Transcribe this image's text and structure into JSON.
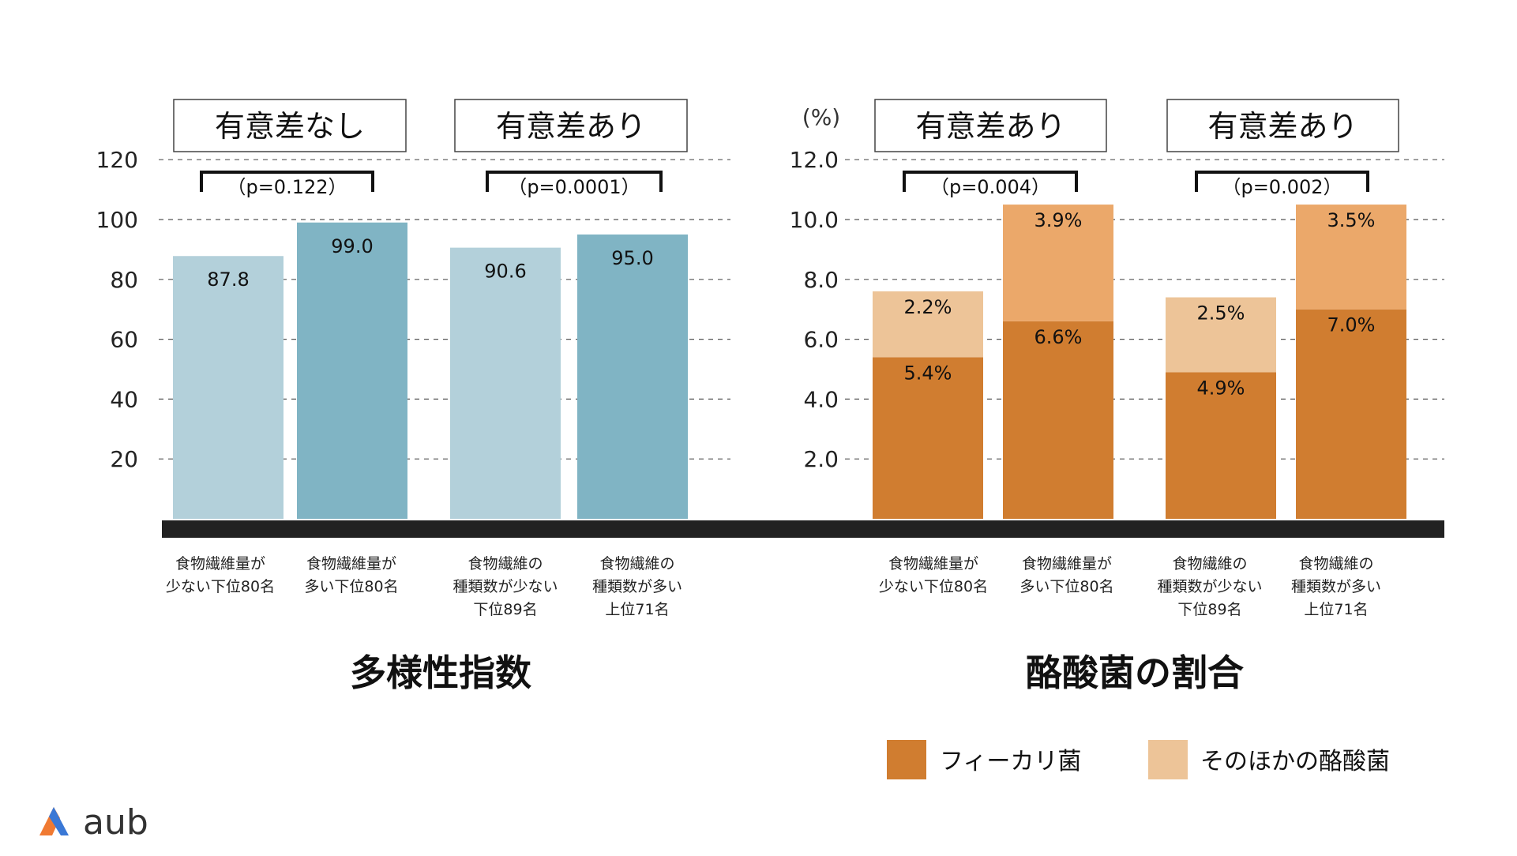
{
  "chart_data": [
    {
      "type": "bar",
      "title": "多様性指数",
      "categories": [
        [
          "食物繊維量が",
          "少ない下位80名"
        ],
        [
          "食物繊維量が",
          "多い下位80名"
        ],
        [
          "食物繊維の",
          "種類数が少ない",
          "下位89名"
        ],
        [
          "食物繊維の",
          "種類数が多い",
          "上位71名"
        ]
      ],
      "values": [
        87.8,
        99.0,
        90.6,
        95.0
      ],
      "value_labels": [
        "87.8",
        "99.0",
        "90.6",
        "95.0"
      ],
      "y_ticks": [
        "120",
        "100",
        "80",
        "60",
        "40",
        "20"
      ],
      "ylim": [
        0,
        120
      ],
      "grid": "dashed",
      "comparisons": [
        {
          "label": "有意差なし",
          "p": "（p=0.122）"
        },
        {
          "label": "有意差あり",
          "p": "（p=0.0001）"
        }
      ],
      "colors": [
        "#b3d0da",
        "#80b4c4",
        "#b3d0da",
        "#80b4c4"
      ]
    },
    {
      "type": "bar",
      "stacked": true,
      "title": "酪酸菌の割合",
      "ylabel": "(%)",
      "categories": [
        [
          "食物繊維量が",
          "少ない下位80名"
        ],
        [
          "食物繊維量が",
          "多い下位80名"
        ],
        [
          "食物繊維の",
          "種類数が少ない",
          "下位89名"
        ],
        [
          "食物繊維の",
          "種類数が多い",
          "上位71名"
        ]
      ],
      "series": [
        {
          "name": "フィーカリ菌",
          "values": [
            5.4,
            6.6,
            4.9,
            7.0
          ],
          "labels": [
            "5.4%",
            "6.6%",
            "4.9%",
            "7.0%"
          ],
          "color": "#d07d30"
        },
        {
          "name": "そのほかの酪酸菌",
          "values": [
            2.2,
            3.9,
            2.5,
            3.5
          ],
          "labels": [
            "2.2%",
            "3.9%",
            "2.5%",
            "3.5%"
          ],
          "color": "#edc498",
          "color_tall": "#eba86a"
        }
      ],
      "y_ticks": [
        "12.0",
        "10.0",
        "8.0",
        "6.0",
        "4.0",
        "2.0"
      ],
      "ylim": [
        0,
        12
      ],
      "grid": "dashed",
      "comparisons": [
        {
          "label": "有意差あり",
          "p": "（p=0.004）"
        },
        {
          "label": "有意差あり",
          "p": "（p=0.002）"
        }
      ]
    }
  ],
  "logo": {
    "text": "aub"
  }
}
